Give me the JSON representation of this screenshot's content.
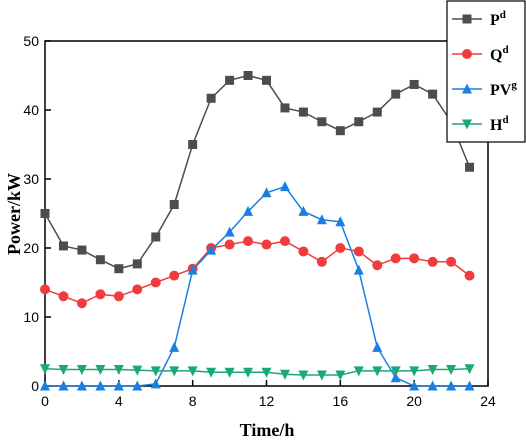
{
  "chart_data": {
    "type": "line",
    "xlabel": "Time/h",
    "ylabel": "Power/kW",
    "xlim": [
      0,
      24
    ],
    "ylim": [
      0,
      50
    ],
    "xticks": [
      "0",
      "4",
      "8",
      "12",
      "16",
      "20",
      "24"
    ],
    "yticks": [
      "0",
      "10",
      "20",
      "30",
      "40",
      "50"
    ],
    "grid": false,
    "legend_position": "top-right",
    "x": [
      0,
      1,
      2,
      3,
      4,
      5,
      6,
      7,
      8,
      9,
      10,
      11,
      12,
      13,
      14,
      15,
      16,
      17,
      18,
      19,
      20,
      21,
      22,
      23
    ],
    "series": [
      {
        "name": "P",
        "sup": "d",
        "marker": "square",
        "color": "#4d4d4d",
        "values": [
          25,
          20.3,
          19.7,
          18.3,
          17,
          17.7,
          21.6,
          26.3,
          35,
          41.7,
          44.3,
          45,
          44.3,
          40.3,
          39.7,
          38.3,
          37,
          38.3,
          39.7,
          42.3,
          43.7,
          42.3,
          38.3,
          31.7
        ]
      },
      {
        "name": "Q",
        "sup": "d",
        "marker": "circle",
        "color": "#f03c3c",
        "values": [
          14,
          13,
          12,
          13.3,
          13,
          14,
          15,
          16,
          17,
          20,
          20.5,
          21,
          20.5,
          21,
          19.5,
          18,
          20,
          19.5,
          17.5,
          18.5,
          18.5,
          18,
          18,
          16
        ]
      },
      {
        "name": "PV",
        "sup": "g",
        "marker": "triangle-up",
        "color": "#1a7fe0",
        "values": [
          0,
          0,
          0,
          0,
          0,
          0,
          0.3,
          5.6,
          16.8,
          19.7,
          22.3,
          25.3,
          28,
          28.9,
          25.3,
          24.1,
          23.8,
          16.8,
          5.6,
          1.2,
          0,
          0,
          0,
          0
        ]
      },
      {
        "name": "H",
        "sup": "d",
        "marker": "triangle-down",
        "color": "#1aa87a",
        "values": [
          2.5,
          2.4,
          2.4,
          2.4,
          2.4,
          2.3,
          2.2,
          2.2,
          2.2,
          2,
          2,
          2,
          2,
          1.7,
          1.6,
          1.6,
          1.6,
          2.2,
          2.2,
          2.2,
          2.2,
          2.4,
          2.4,
          2.5
        ]
      }
    ]
  }
}
